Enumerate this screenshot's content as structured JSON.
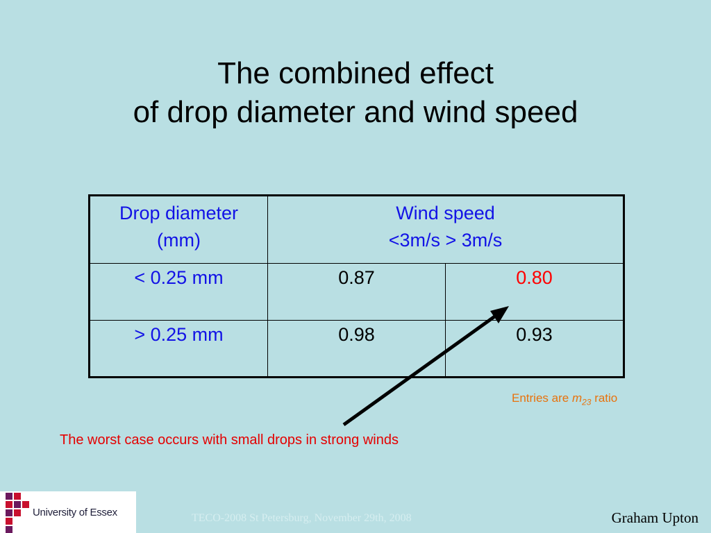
{
  "title": {
    "line1": "The combined effect",
    "line2": "of drop diameter and wind speed"
  },
  "table": {
    "col1_header": [
      "Drop diameter",
      "(mm)"
    ],
    "wind_header": "Wind speed",
    "wind_low": "<3m/s",
    "wind_high": "> 3m/s",
    "rows": [
      {
        "label": "< 0.25 mm",
        "low": "0.87",
        "high": "0.80"
      },
      {
        "label": "> 0.25 mm",
        "low": "0.98",
        "high": "0.93"
      }
    ]
  },
  "note": {
    "prefix": "Entries are ",
    "var": "m",
    "subscript": "23",
    "suffix": " ratio"
  },
  "worst_case": "The worst case occurs with small drops in strong winds",
  "logo": {
    "text": "University of Essex"
  },
  "footer": "TECO-2008 St Petersburg, November 29th, 2008",
  "author": "Graham Upton",
  "colors": {
    "background": "#b9dfe3",
    "table_text": "#1212e6",
    "highlight": "#ff0000",
    "note": "#e8720c",
    "logo_purple": "#6b1a5e",
    "logo_red": "#c8102e"
  }
}
